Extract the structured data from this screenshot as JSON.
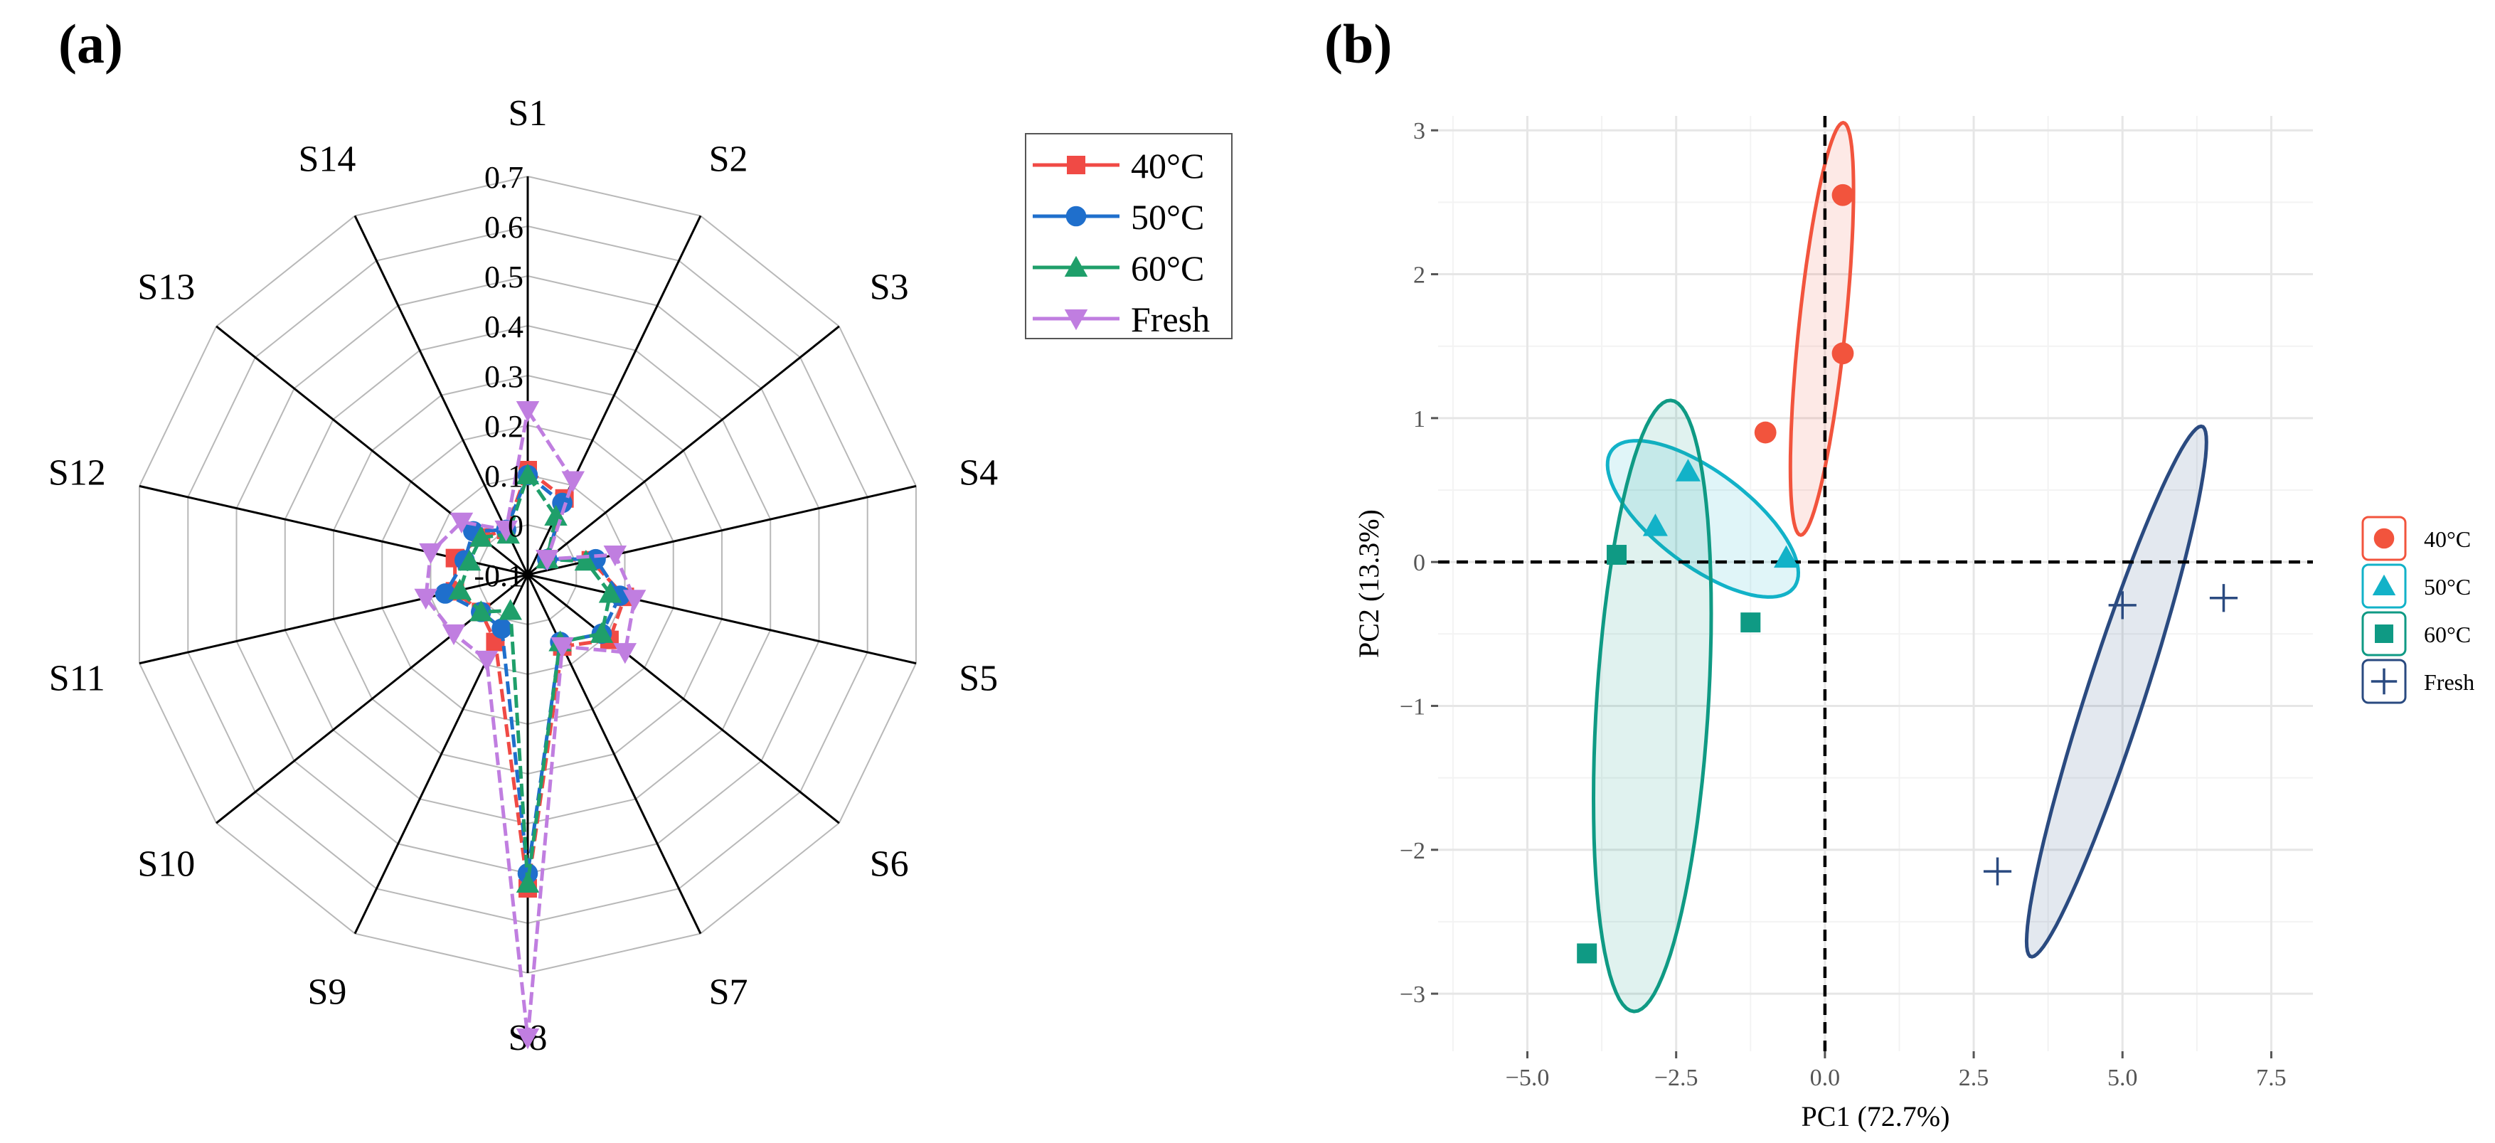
{
  "panels": {
    "a_label": "(a)",
    "b_label": "(b)"
  },
  "colors": {
    "s40": "#f04a45",
    "s50": "#1f6fcc",
    "s60": "#1f9f6a",
    "fresh": "#c07ee0",
    "pca40": "#f2543d",
    "pca50": "#12b2c8",
    "pca60": "#0f9a84",
    "pcaFresh": "#2a4a80",
    "grid": "#ececec",
    "axis": "#777777"
  },
  "chart_data": [
    {
      "type": "radar",
      "panel": "(a)",
      "axes": [
        "S1",
        "S2",
        "S3",
        "S4",
        "S5",
        "S6",
        "S7",
        "S8",
        "S9",
        "S10",
        "S11",
        "S12",
        "S13",
        "S14"
      ],
      "rmin": -0.1,
      "rmax": 0.7,
      "ticks": [
        -0.1,
        0,
        0.1,
        0.2,
        0.3,
        0.4,
        0.5,
        0.6,
        0.7
      ],
      "tick_labels": [
        "-0.1",
        "0",
        "0.1",
        "0.2",
        "0.3",
        "0.4",
        "0.5",
        "0.6",
        "0.7"
      ],
      "series": [
        {
          "name": "40°C",
          "color": "#f04a45",
          "marker": "square",
          "values": [
            0.11,
            0.07,
            -0.05,
            0.03,
            0.1,
            0.11,
            0.06,
            0.53,
            0.05,
            0.02,
            0.05,
            0.05,
            0.02,
            0.0
          ]
        },
        {
          "name": "50°C",
          "color": "#1f6fcc",
          "marker": "circle",
          "values": [
            0.1,
            0.06,
            -0.05,
            0.04,
            0.09,
            0.09,
            0.05,
            0.5,
            0.02,
            0.02,
            0.07,
            0.03,
            0.04,
            0.0
          ]
        },
        {
          "name": "60°C",
          "color": "#1f9f6a",
          "marker": "triangle-up",
          "values": [
            0.1,
            0.03,
            -0.05,
            0.02,
            0.07,
            0.09,
            0.05,
            0.52,
            -0.02,
            0.02,
            0.04,
            0.02,
            0.02,
            -0.01
          ]
        },
        {
          "name": "Fresh",
          "color": "#c07ee0",
          "marker": "triangle-down",
          "values": [
            0.23,
            0.11,
            -0.05,
            0.08,
            0.12,
            0.15,
            0.06,
            0.83,
            0.09,
            0.09,
            0.11,
            0.1,
            0.07,
            0.0
          ]
        }
      ],
      "legend": {
        "position": "top-right",
        "entries": [
          "40°C",
          "50°C",
          "60°C",
          "Fresh"
        ]
      }
    },
    {
      "type": "scatter",
      "panel": "(b)",
      "xlabel": "PC1 (72.7%)",
      "ylabel": "PC2 (13.3%)",
      "xlim": [
        -6.5,
        8.2
      ],
      "ylim": [
        -3.4,
        3.1
      ],
      "xticks": [
        -5,
        -2.5,
        0,
        2.5,
        5,
        7.5
      ],
      "xtick_labels": [
        "−5.0",
        "−2.5",
        "0.0",
        "2.5",
        "5.0",
        "7.5"
      ],
      "yticks": [
        -3,
        -2,
        -1,
        0,
        1,
        2,
        3
      ],
      "ytick_labels": [
        "−3",
        "−2",
        "−1",
        "0",
        "1",
        "2",
        "3"
      ],
      "reference_lines": {
        "x": 0,
        "y": 0,
        "style": "dashed"
      },
      "series": [
        {
          "name": "40°C",
          "color": "#f2543d",
          "marker": "circle",
          "points": [
            [
              0.3,
              2.55
            ],
            [
              0.3,
              1.45
            ],
            [
              -1.0,
              0.9
            ]
          ],
          "ellipse": {
            "cx": -0.05,
            "cy": 1.62,
            "a": 1.48,
            "b": 0.38,
            "angle_deg": 75
          }
        },
        {
          "name": "50°C",
          "color": "#12b2c8",
          "marker": "triangle",
          "points": [
            [
              -2.3,
              0.63
            ],
            [
              -2.85,
              0.25
            ],
            [
              -0.65,
              0.03
            ]
          ],
          "ellipse": {
            "cx": -2.05,
            "cy": 0.3,
            "a": 1.65,
            "b": 0.38,
            "angle_deg": -14
          }
        },
        {
          "name": "60°C",
          "color": "#0f9a84",
          "marker": "square",
          "points": [
            [
              -3.5,
              0.05
            ],
            [
              -1.25,
              -0.42
            ],
            [
              -4.0,
              -2.72
            ]
          ],
          "ellipse": {
            "cx": -2.9,
            "cy": -1.0,
            "a": 2.15,
            "b": 0.93,
            "angle_deg": 80
          }
        },
        {
          "name": "Fresh",
          "color": "#2a4a80",
          "marker": "plus",
          "points": [
            [
              5.0,
              -0.3
            ],
            [
              6.7,
              -0.25
            ],
            [
              2.9,
              -2.15
            ]
          ],
          "ellipse": {
            "cx": 4.9,
            "cy": -0.9,
            "a": 2.35,
            "b": 0.4,
            "angle_deg": 51
          }
        }
      ],
      "legend": {
        "position": "right",
        "entries": [
          "40°C",
          "50°C",
          "60°C",
          "Fresh"
        ]
      }
    }
  ]
}
